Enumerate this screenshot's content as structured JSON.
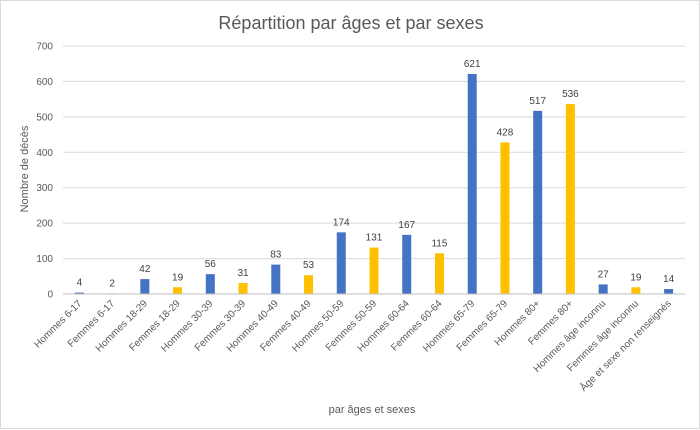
{
  "chart_data": {
    "type": "bar",
    "title": "Répartition par âges et par sexes",
    "xlabel": "par âges et sexes",
    "ylabel": "Nombre de décès",
    "ylim": [
      0,
      700
    ],
    "yticks": [
      0,
      100,
      200,
      300,
      400,
      500,
      600,
      700
    ],
    "grid": true,
    "legend": "none",
    "categories": [
      "Hommes 6-17",
      "Femmes 6-17",
      "Hommes 18-29",
      "Femmes 18-29",
      "Hommes 30-39",
      "Femmes 30-39",
      "Hommes 40-49",
      "Femmes 40-49",
      "Hommes 50-59",
      "Femmes 50-59",
      "Hommes 60-64",
      "Femmes 60-64",
      "Hommes 65-79",
      "Femmes 65-79",
      "Hommes 80+",
      "Femmes 80+",
      "Hommes âge inconnu",
      "Femmes âge inconnu",
      "Âge et sexe non renseignés"
    ],
    "values": [
      4,
      2,
      42,
      19,
      56,
      31,
      83,
      53,
      174,
      131,
      167,
      115,
      621,
      428,
      517,
      536,
      27,
      19,
      14
    ],
    "colors": {
      "hommes": "#4472c4",
      "femmes": "#ffc000"
    },
    "bar_color_key": [
      "hommes",
      "femmes",
      "hommes",
      "femmes",
      "hommes",
      "femmes",
      "hommes",
      "femmes",
      "hommes",
      "femmes",
      "hommes",
      "femmes",
      "hommes",
      "femmes",
      "hommes",
      "femmes",
      "hommes",
      "femmes",
      "hommes"
    ]
  }
}
